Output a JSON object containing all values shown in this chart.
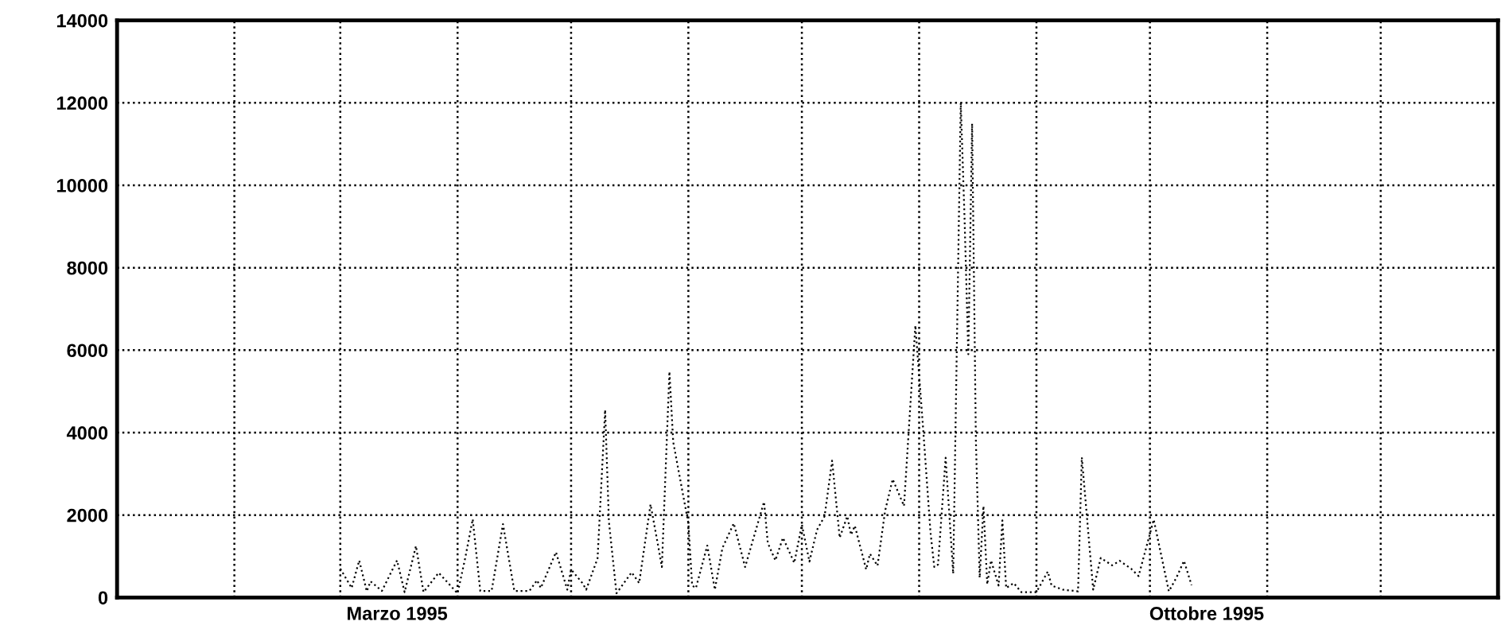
{
  "chart_data": {
    "type": "line",
    "line_style": "dotted",
    "marker": "none",
    "grid": true,
    "xlim": [
      "1995-01-01",
      "1996-01-01"
    ],
    "xticks": [
      {
        "value": "1995-02-01",
        "label": null
      },
      {
        "value": "1995-03-01",
        "label": null
      },
      {
        "value": "1995-03-16",
        "label": "Marzo 1995"
      },
      {
        "value": "1995-04-01",
        "label": null
      },
      {
        "value": "1995-05-01",
        "label": null
      },
      {
        "value": "1995-06-01",
        "label": null
      },
      {
        "value": "1995-07-01",
        "label": null
      },
      {
        "value": "1995-08-01",
        "label": null
      },
      {
        "value": "1995-09-01",
        "label": null
      },
      {
        "value": "1995-10-01",
        "label": null
      },
      {
        "value": "1995-10-16",
        "label": "Ottobre 1995"
      },
      {
        "value": "1995-11-01",
        "label": null
      },
      {
        "value": "1995-12-01",
        "label": null
      }
    ],
    "ylim": [
      0,
      14000
    ],
    "yticks": [
      0,
      2000,
      4000,
      6000,
      8000,
      10000,
      12000,
      14000
    ],
    "series": [
      {
        "color": "#000000",
        "x": [
          "1995-03-01",
          "1995-03-04",
          "1995-03-06",
          "1995-03-08",
          "1995-03-09",
          "1995-03-12",
          "1995-03-16",
          "1995-03-18",
          "1995-03-21",
          "1995-03-23",
          "1995-03-27",
          "1995-04-01",
          "1995-04-03",
          "1995-04-05",
          "1995-04-07",
          "1995-04-10",
          "1995-04-13",
          "1995-04-16",
          "1995-04-20",
          "1995-04-22",
          "1995-04-23",
          "1995-04-27",
          "1995-04-30",
          "1995-05-01",
          "1995-05-04",
          "1995-05-05",
          "1995-05-08",
          "1995-05-10",
          "1995-05-11",
          "1995-05-13",
          "1995-05-17",
          "1995-05-19",
          "1995-05-22",
          "1995-05-24",
          "1995-05-25",
          "1995-05-27",
          "1995-05-28",
          "1995-06-01",
          "1995-06-02",
          "1995-06-03",
          "1995-06-06",
          "1995-06-08",
          "1995-06-10",
          "1995-06-13",
          "1995-06-16",
          "1995-06-21",
          "1995-06-22",
          "1995-06-24",
          "1995-06-26",
          "1995-06-29",
          "1995-07-01",
          "1995-07-03",
          "1995-07-05",
          "1995-07-07",
          "1995-07-09",
          "1995-07-11",
          "1995-07-13",
          "1995-07-14",
          "1995-07-15",
          "1995-07-18",
          "1995-07-19",
          "1995-07-21",
          "1995-07-23",
          "1995-07-25",
          "1995-07-28",
          "1995-07-31",
          "1995-08-02",
          "1995-08-04",
          "1995-08-05",
          "1995-08-06",
          "1995-08-08",
          "1995-08-10",
          "1995-08-12",
          "1995-08-13",
          "1995-08-14",
          "1995-08-15",
          "1995-08-16",
          "1995-08-17",
          "1995-08-18",
          "1995-08-19",
          "1995-08-20",
          "1995-08-22",
          "1995-08-23",
          "1995-08-24",
          "1995-08-26",
          "1995-08-28",
          "1995-09-01",
          "1995-09-04",
          "1995-09-05",
          "1995-09-08",
          "1995-09-12",
          "1995-09-13",
          "1995-09-16",
          "1995-09-18",
          "1995-09-21",
          "1995-09-23",
          "1995-09-26",
          "1995-09-28",
          "1995-10-02",
          "1995-10-06",
          "1995-10-08",
          "1995-10-10",
          "1995-10-12"
        ],
        "values": [
          700,
          230,
          900,
          150,
          390,
          160,
          900,
          130,
          1250,
          130,
          600,
          100,
          950,
          1900,
          160,
          160,
          1780,
          160,
          160,
          420,
          230,
          1100,
          190,
          680,
          350,
          190,
          950,
          4550,
          1840,
          100,
          610,
          350,
          2260,
          1260,
          740,
          5480,
          3770,
          1800,
          290,
          230,
          1260,
          190,
          1200,
          1800,
          740,
          2320,
          1320,
          900,
          1450,
          840,
          1770,
          870,
          1640,
          1970,
          3320,
          1450,
          1970,
          1520,
          1740,
          680,
          1060,
          770,
          2100,
          2870,
          2220,
          6600,
          4160,
          1580,
          740,
          800,
          3390,
          580,
          12000,
          9200,
          5900,
          11500,
          3800,
          480,
          2220,
          320,
          900,
          290,
          1870,
          230,
          350,
          130,
          130,
          630,
          290,
          190,
          150,
          3400,
          190,
          960,
          780,
          890,
          700,
          520,
          1890,
          150,
          480,
          890,
          300
        ]
      }
    ]
  }
}
